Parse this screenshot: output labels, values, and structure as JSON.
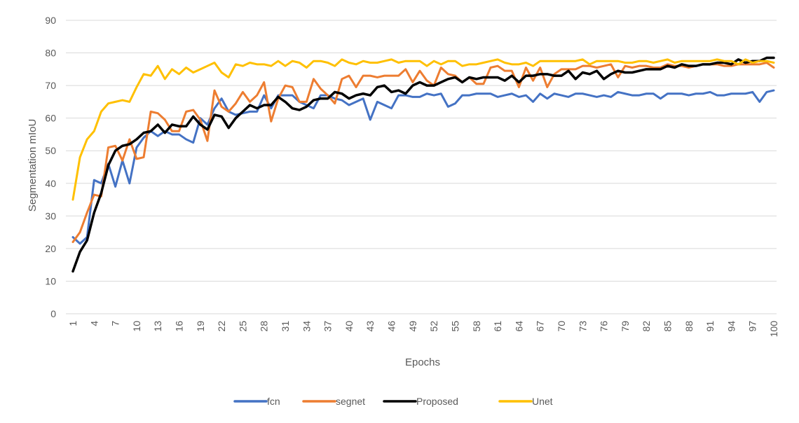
{
  "chart_data": {
    "type": "line",
    "xlabel": "Epochs",
    "ylabel": "Segmentation mIoU",
    "ylim": [
      0,
      90
    ],
    "yticks": [
      0,
      10,
      20,
      30,
      40,
      50,
      60,
      70,
      80,
      90
    ],
    "xticks": [
      1,
      4,
      7,
      10,
      13,
      16,
      19,
      22,
      25,
      28,
      31,
      34,
      37,
      40,
      43,
      46,
      49,
      52,
      55,
      58,
      61,
      64,
      67,
      70,
      73,
      76,
      79,
      82,
      85,
      88,
      91,
      94,
      97,
      100
    ],
    "x_start": 1,
    "grid": "horizontal",
    "legend_position": "bottom",
    "series": [
      {
        "name": "fcn",
        "color": "#4472c4",
        "values": [
          23.5,
          21.5,
          23.5,
          41,
          40,
          46,
          39,
          47,
          40,
          51,
          54,
          56,
          54.5,
          56,
          55,
          55,
          53.5,
          52.5,
          60,
          58,
          63,
          66,
          62,
          61,
          61.5,
          62,
          62,
          67,
          63,
          67,
          67,
          67,
          65,
          64,
          63,
          67,
          67,
          66,
          65.5,
          64,
          65,
          66,
          59.5,
          65,
          64,
          63,
          67,
          67,
          66.5,
          66.5,
          67.5,
          67,
          67.5,
          63.5,
          64.5,
          67,
          67,
          67.5,
          67.5,
          67.5,
          66.5,
          67,
          67.5,
          66.5,
          67,
          65,
          67.5,
          66,
          67.5,
          67,
          66.5,
          67.5,
          67.5,
          67,
          66.5,
          67,
          66.5,
          68,
          67.5,
          67,
          67,
          67.5,
          67.5,
          66,
          67.5,
          67.5,
          67.5,
          67,
          67.5,
          67.5,
          68,
          67,
          67,
          67.5,
          67.5,
          67.5,
          68,
          65,
          68,
          68.5
        ]
      },
      {
        "name": "segnet",
        "color": "#ed7d31",
        "values": [
          22,
          25,
          31,
          36.5,
          36,
          51,
          51.5,
          47,
          53.5,
          47.5,
          48,
          62,
          61.5,
          59.5,
          56,
          56,
          62,
          62.5,
          59.5,
          53,
          68.5,
          63.5,
          62,
          64.5,
          68,
          65,
          67,
          71,
          59,
          66,
          70,
          69.5,
          65,
          65,
          72,
          69,
          67,
          64.5,
          72,
          73,
          69.5,
          73,
          73,
          72.5,
          73,
          73,
          73,
          75,
          71,
          74.5,
          71.5,
          70,
          75.5,
          73.5,
          73,
          71,
          72.5,
          70.5,
          70.5,
          75.5,
          76,
          74.5,
          74.5,
          69.5,
          75.5,
          71.5,
          75.5,
          69.5,
          73.5,
          75,
          75,
          75,
          76,
          76,
          75.5,
          76,
          76.5,
          72.5,
          76,
          75.5,
          76,
          76,
          75.5,
          75.5,
          76.5,
          76,
          76,
          75.5,
          76,
          76.5,
          76.5,
          76.5,
          76,
          76,
          76.5,
          76.5,
          76.5,
          76.5,
          77,
          75.5
        ]
      },
      {
        "name": "Proposed",
        "color": "#000000",
        "values": [
          13,
          19,
          22.5,
          31,
          37,
          45.5,
          50,
          51.5,
          52,
          53.5,
          55.5,
          56,
          58,
          55.5,
          58,
          57.5,
          57.5,
          60.5,
          58,
          56.5,
          61,
          60.5,
          57,
          60,
          62,
          64,
          63,
          64,
          64,
          66.5,
          65,
          63,
          62.5,
          63.5,
          65.5,
          66,
          66,
          68,
          67.5,
          66,
          67,
          67.5,
          67,
          69.5,
          70,
          68,
          68.5,
          67.5,
          70,
          71,
          70,
          70,
          71,
          72,
          72.5,
          71,
          72.5,
          72,
          72.5,
          72.5,
          72.5,
          71.5,
          73,
          71,
          73,
          73,
          73.5,
          73.5,
          73,
          73,
          74.5,
          72,
          74,
          73.5,
          74.5,
          72,
          73.5,
          74.5,
          74,
          74,
          74.5,
          75,
          75,
          75,
          76,
          75.5,
          76.5,
          76,
          76,
          76.5,
          76.5,
          77,
          77,
          76.5,
          78,
          77,
          77.5,
          77.5,
          78.5,
          78.5
        ]
      },
      {
        "name": "Unet",
        "color": "#ffc000",
        "values": [
          35,
          48,
          53.5,
          56,
          62,
          64.5,
          65,
          65.5,
          65,
          69.5,
          73.5,
          73,
          76,
          72,
          75,
          73.5,
          75.5,
          74,
          75,
          76,
          77,
          74,
          72.5,
          76.5,
          76,
          77,
          76.5,
          76.5,
          76,
          77.5,
          76,
          77.5,
          77,
          75.5,
          77.5,
          77.5,
          77,
          76,
          78,
          77,
          76.5,
          77.5,
          77,
          77,
          77.5,
          78,
          77,
          77.5,
          77.5,
          77.5,
          76,
          77.5,
          76.5,
          77.5,
          77.5,
          76,
          76.5,
          76.5,
          77,
          77.5,
          78,
          77,
          76.5,
          76.5,
          77,
          76,
          77.5,
          77.5,
          77.5,
          77.5,
          77.5,
          77.5,
          78,
          76.5,
          77.5,
          77.5,
          77.5,
          77.5,
          77,
          77,
          77.5,
          77.5,
          77,
          77.5,
          78,
          77,
          77.5,
          77.5,
          77.5,
          77.5,
          77.5,
          78,
          77.5,
          77.5,
          76.5,
          78,
          77,
          77.5,
          77.5,
          77
        ]
      }
    ]
  }
}
